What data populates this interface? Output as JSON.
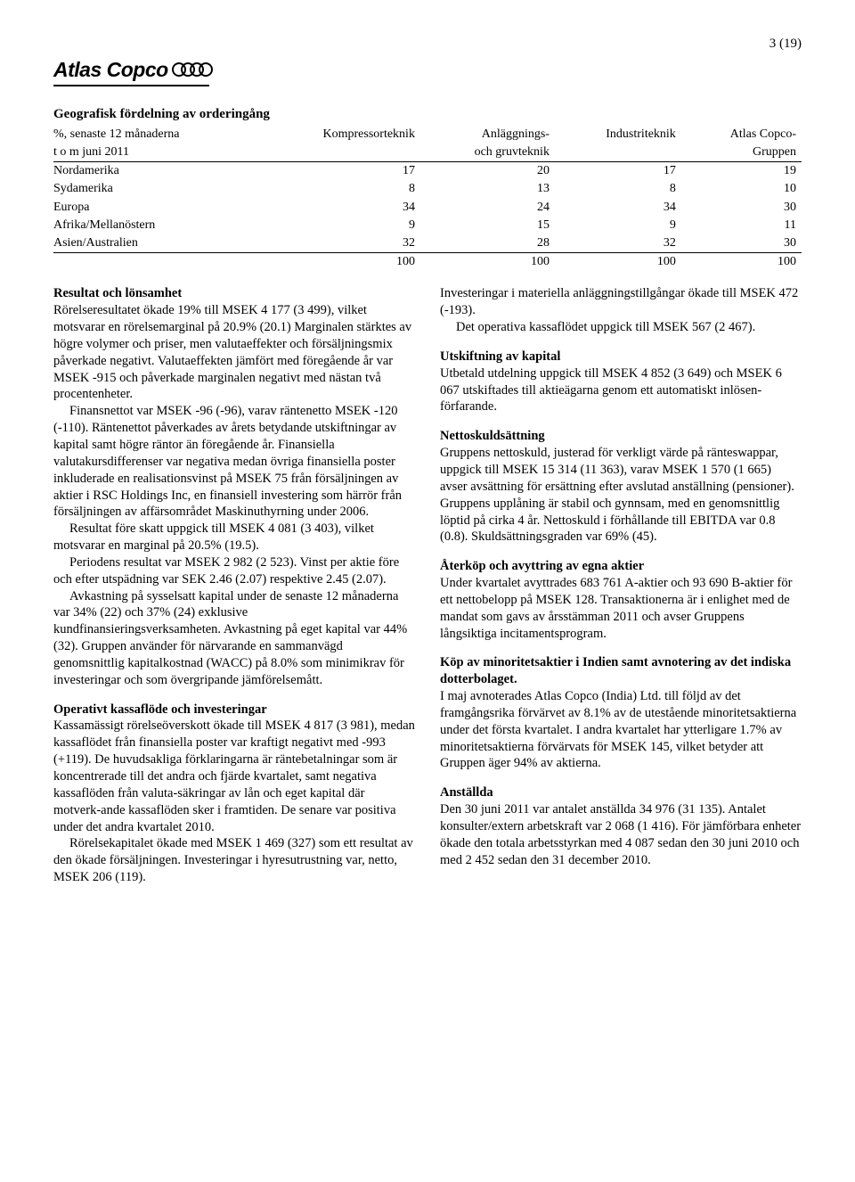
{
  "page_number": "3 (19)",
  "logo_text": "Atlas Copco",
  "table": {
    "title": "Geografisk fördelning av orderingång",
    "head_row1": [
      "%, senaste 12 månaderna",
      "Kompressorteknik",
      "Anläggnings-",
      "Industriteknik",
      "Atlas Copco-"
    ],
    "head_row2": [
      "t o m juni 2011",
      "",
      "och gruvteknik",
      "",
      "Gruppen"
    ],
    "rows": [
      [
        "Nordamerika",
        "17",
        "20",
        "17",
        "19"
      ],
      [
        "Sydamerika",
        "8",
        "13",
        "8",
        "10"
      ],
      [
        "Europa",
        "34",
        "24",
        "34",
        "30"
      ],
      [
        "Afrika/Mellanöstern",
        "9",
        "15",
        "9",
        "11"
      ],
      [
        "Asien/Australien",
        "32",
        "28",
        "32",
        "30"
      ]
    ],
    "total_row": [
      "",
      "100",
      "100",
      "100",
      "100"
    ]
  },
  "left": {
    "h1": "Resultat och lönsamhet",
    "p1": "Rörelseresultatet ökade 19% till MSEK 4 177 (3 499), vilket motsvarar en rörelsemarginal på 20.9% (20.1) Marginalen stärktes av högre volymer och priser, men valutaeffekter och försäljningsmix påverkade negativt. Valutaeffekten jämfört med föregående år var MSEK -915 och påverkade marginalen negativt med nästan två procentenheter.",
    "p2": "Finansnettot var MSEK -96 (-96), varav räntenetto MSEK -120 (-110). Räntenettot påverkades av årets betydande utskiftningar av kapital samt högre räntor än föregående år. Finansiella valutakursdifferenser var negativa medan övriga finansiella poster inkluderade en realisationsvinst på MSEK 75 från försäljningen av aktier i RSC Holdings Inc, en finansiell investering som härrör från försäljningen av affärsområdet Maskinuthyrning under 2006.",
    "p3": "Resultat före skatt uppgick till MSEK 4 081 (3 403), vilket motsvarar en marginal på 20.5% (19.5).",
    "p4": "Periodens resultat var MSEK 2 982 (2 523). Vinst per aktie före och efter utspädning var SEK 2.46 (2.07) respektive 2.45 (2.07).",
    "p5": "Avkastning på sysselsatt kapital under de senaste 12 månaderna var 34% (22) och 37% (24) exklusive kundfinansieringsverksamheten. Avkastning på eget kapital var 44% (32). Gruppen använder för närvarande en sammanvägd genomsnittlig kapitalkostnad (WACC) på 8.0% som minimikrav för investeringar och som övergripande jämförelsemått.",
    "h2": "Operativt kassaflöde och investeringar",
    "p6": "Kassamässigt rörelseöverskott ökade till MSEK 4 817 (3 981), medan kassaflödet från finansiella poster var kraftigt negativt med -993 (+119). De huvudsakliga förklaringarna är räntebetalningar som är koncentrerade till det andra och fjärde kvartalet, samt negativa kassaflöden från valuta-säkringar av lån och eget kapital där motverk-ande kassaflöden sker i framtiden. De senare var positiva under det andra kvartalet 2010.",
    "p7": "Rörelsekapitalet ökade med MSEK 1 469 (327) som ett resultat av den ökade försäljningen. Investeringar i hyresutrustning var, netto, MSEK 206 (119)."
  },
  "right": {
    "p1": "Investeringar i materiella anläggningstillgångar ökade till MSEK 472 (-193).",
    "p2": "Det operativa kassaflödet uppgick till MSEK 567 (2 467).",
    "h1": "Utskiftning av kapital",
    "p3": "Utbetald utdelning uppgick till MSEK 4 852 (3 649) och MSEK 6 067 utskiftades till aktieägarna genom ett automatiskt inlösen-förfarande.",
    "h2": "Nettoskuldsättning",
    "p4": "Gruppens nettoskuld, justerad för verkligt värde på ränteswappar, uppgick till MSEK 15 314 (11 363), varav MSEK 1 570 (1 665) avser avsättning för ersättning efter avslutad anställning (pensioner). Gruppens upplåning är stabil och gynnsam, med en genomsnittlig löptid på cirka 4 år. Nettoskuld i förhållande till EBITDA var 0.8 (0.8). Skuldsättningsgraden var 69% (45).",
    "h3": "Återköp och avyttring av egna aktier",
    "p5": "Under kvartalet avyttrades 683 761 A-aktier och 93 690 B-aktier för ett nettobelopp på MSEK 128. Transaktionerna är i enlighet med de mandat som gavs av årsstämman 2011 och avser Gruppens långsiktiga incitamentsprogram.",
    "h4": "Köp av minoritetsaktier i Indien samt avnotering av det indiska dotterbolaget.",
    "p6": "I maj avnoterades Atlas Copco (India) Ltd. till följd av det framgångsrika förvärvet av 8.1% av de utestående minoritetsaktierna under det första kvartalet. I andra kvartalet har ytterligare 1.7% av minoritetsaktierna förvärvats för MSEK 145, vilket betyder att Gruppen äger 94% av aktierna.",
    "h5": "Anställda",
    "p7": "Den 30 juni 2011 var antalet anställda 34 976 (31 135). Antalet konsulter/extern arbetskraft var 2 068 (1 416). För jämförbara enheter ökade den totala arbetsstyrkan med 4 087 sedan den 30 juni 2010 och med 2 452 sedan den 31 december 2010."
  }
}
